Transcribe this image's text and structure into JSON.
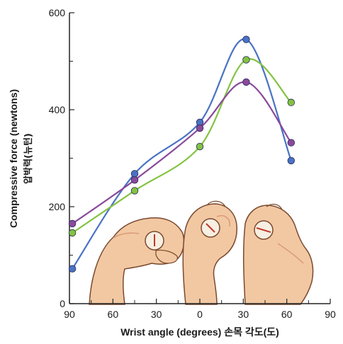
{
  "chart_data": {
    "type": "line",
    "xlabel": "Wrist angle (degrees) 손목 각도(도)",
    "ylabel": "Compressive force (newtons)",
    "ylabel_sub": "압박력(뉴턴)",
    "x_ticks": [
      {
        "value": -90,
        "label": "90"
      },
      {
        "value": -60,
        "label": "60"
      },
      {
        "value": -30,
        "label": "30"
      },
      {
        "value": 0,
        "label": "0"
      },
      {
        "value": 30,
        "label": "30"
      },
      {
        "value": 60,
        "label": "60"
      },
      {
        "value": 90,
        "label": "90"
      }
    ],
    "y_ticks": [
      0,
      200,
      400,
      600
    ],
    "xlim": [
      -90,
      90
    ],
    "ylim": [
      0,
      600
    ],
    "grid": false,
    "series": [
      {
        "color": "#4a72c4",
        "points": [
          [
            -88,
            72
          ],
          [
            -45,
            268
          ],
          [
            0,
            374
          ],
          [
            32,
            545
          ],
          [
            63,
            295
          ]
        ]
      },
      {
        "color": "#82c341",
        "points": [
          [
            -88,
            146
          ],
          [
            -45,
            233
          ],
          [
            0,
            324
          ],
          [
            32,
            503
          ],
          [
            63,
            415
          ]
        ]
      },
      {
        "color": "#8a4a9b",
        "points": [
          [
            -88,
            165
          ],
          [
            -45,
            255
          ],
          [
            0,
            362
          ],
          [
            32,
            457
          ],
          [
            63,
            332
          ]
        ]
      }
    ]
  },
  "illustration": {
    "icons": [
      "hand-flexed-icon",
      "hand-neutral-icon",
      "hand-extended-icon"
    ],
    "colors": {
      "skin": "#f2c8a2",
      "skin_shadow": "#d99a76",
      "outline": "#7a4a30",
      "dial": "#f6efe2",
      "needle": "#c0392b"
    }
  }
}
